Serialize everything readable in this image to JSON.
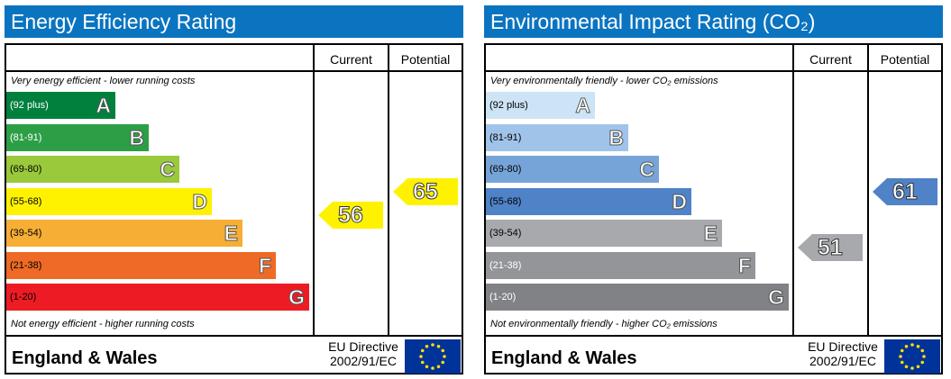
{
  "chart_data": [
    {
      "type": "bar",
      "title": "Energy Efficiency Rating",
      "top_note": "Very energy efficient - lower running costs",
      "bottom_note": "Not energy efficient - higher running costs",
      "columns": [
        "Current",
        "Potential"
      ],
      "bands": [
        {
          "letter": "A",
          "range": "(92 plus)",
          "color": "#00803d",
          "range_color": "#ffffff",
          "width": 0.36
        },
        {
          "letter": "B",
          "range": "(81-91)",
          "color": "#2c9f46",
          "range_color": "#ffffff",
          "width": 0.47
        },
        {
          "letter": "C",
          "range": "(69-80)",
          "color": "#9ac93c",
          "range_color": "#000000",
          "width": 0.57
        },
        {
          "letter": "D",
          "range": "(55-68)",
          "color": "#fff200",
          "range_color": "#000000",
          "width": 0.68
        },
        {
          "letter": "E",
          "range": "(39-54)",
          "color": "#f6ae35",
          "range_color": "#000000",
          "width": 0.78
        },
        {
          "letter": "F",
          "range": "(21-38)",
          "color": "#ee6a26",
          "range_color": "#000000",
          "width": 0.89
        },
        {
          "letter": "G",
          "range": "(1-20)",
          "color": "#ed1c24",
          "range_color": "#000000",
          "width": 1.0
        }
      ],
      "current": {
        "value": "56",
        "band": "D",
        "color": "#fff200"
      },
      "potential": {
        "value": "65",
        "band": "D",
        "color": "#fff200"
      },
      "region": "England & Wales",
      "directive": [
        "EU Directive",
        "2002/91/EC"
      ]
    },
    {
      "type": "bar",
      "title": "Environmental Impact Rating (CO₂)",
      "top_note": "Very environmentally friendly - lower CO₂ emissions",
      "bottom_note": "Not environmentally friendly - higher CO₂ emissions",
      "columns": [
        "Current",
        "Potential"
      ],
      "bands": [
        {
          "letter": "A",
          "range": "(92 plus)",
          "color": "#cde4f6",
          "range_color": "#000000",
          "width": 0.36
        },
        {
          "letter": "B",
          "range": "(81-91)",
          "color": "#a0c4e9",
          "range_color": "#000000",
          "width": 0.47
        },
        {
          "letter": "C",
          "range": "(69-80)",
          "color": "#77a4d8",
          "range_color": "#000000",
          "width": 0.57
        },
        {
          "letter": "D",
          "range": "(55-68)",
          "color": "#4f82c6",
          "range_color": "#000000",
          "width": 0.68
        },
        {
          "letter": "E",
          "range": "(39-54)",
          "color": "#a7a9ac",
          "range_color": "#000000",
          "width": 0.78
        },
        {
          "letter": "F",
          "range": "(21-38)",
          "color": "#939598",
          "range_color": "#ffffff",
          "width": 0.89
        },
        {
          "letter": "G",
          "range": "(1-20)",
          "color": "#808285",
          "range_color": "#ffffff",
          "width": 1.0
        }
      ],
      "current": {
        "value": "51",
        "band": "E",
        "color": "#a7a9ac"
      },
      "potential": {
        "value": "61",
        "band": "D",
        "color": "#4f82c6"
      },
      "region": "England & Wales",
      "directive": [
        "EU Directive",
        "2002/91/EC"
      ]
    }
  ]
}
